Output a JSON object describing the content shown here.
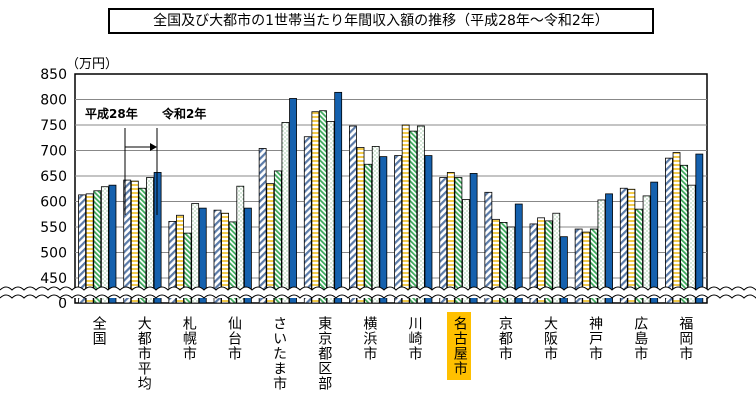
{
  "chart_data": {
    "type": "bar",
    "title": "全国及び大都市の1世帯当たり年間収入額の推移（平成28年～令和2年）",
    "ylabel": "（万円）",
    "ylim": [
      450,
      850
    ],
    "axis_break": true,
    "yticks": [
      "850",
      "800",
      "750",
      "700",
      "650",
      "600",
      "550",
      "500",
      "450",
      "0"
    ],
    "grid": true,
    "annotation": {
      "start": "平成28年",
      "end": "令和2年"
    },
    "highlight_category": "名古屋市",
    "highlight_color": "#FFC000",
    "categories": [
      "全国",
      "大都市平均",
      "札幌市",
      "仙台市",
      "さいたま市",
      "東京都区部",
      "横浜市",
      "川崎市",
      "名古屋市",
      "京都市",
      "大阪市",
      "神戸市",
      "広島市",
      "福岡市"
    ],
    "series": [
      {
        "pattern": "diagonal-stripe",
        "color": "#5B7BA8",
        "values": [
          613,
          642,
          561,
          583,
          704,
          727,
          748,
          690,
          647,
          618,
          556,
          546,
          626,
          685
        ]
      },
      {
        "pattern": "horizontal-stripe",
        "color": "#F2CB4C",
        "values": [
          615,
          640,
          573,
          577,
          635,
          776,
          706,
          750,
          657,
          565,
          568,
          540,
          624,
          696
        ]
      },
      {
        "pattern": "green-diagonal",
        "color": "#3DAA5C",
        "values": [
          621,
          626,
          538,
          560,
          660,
          778,
          673,
          738,
          647,
          559,
          562,
          546,
          585,
          671
        ]
      },
      {
        "pattern": "dotted",
        "color": "#6FB07A",
        "values": [
          629,
          647,
          596,
          630,
          755,
          757,
          708,
          748,
          604,
          550,
          577,
          603,
          611,
          632
        ]
      },
      {
        "pattern": "solid",
        "color": "#1561AE",
        "values": [
          632,
          657,
          587,
          587,
          802,
          814,
          688,
          690,
          655,
          595,
          531,
          615,
          638,
          693
        ]
      }
    ]
  }
}
